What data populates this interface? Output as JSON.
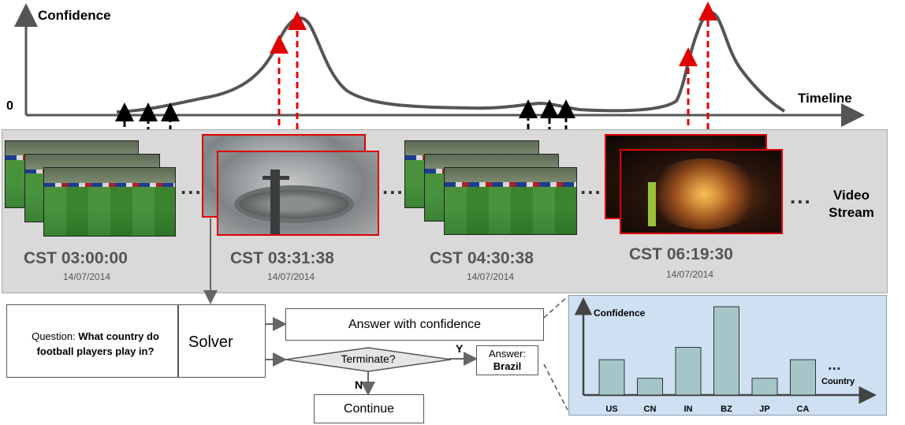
{
  "timeline": {
    "y_axis_label": "Confidence",
    "x_axis_label": "Timeline",
    "zero_label": "0"
  },
  "video_stream": {
    "label_line1": "Video",
    "label_line2": "Stream",
    "ellipsis": "...",
    "groups": [
      {
        "time": "CST 03:00:00",
        "date": "14/07/2014",
        "highlighted": false
      },
      {
        "time": "CST 03:31:38",
        "date": "14/07/2014",
        "highlighted": true
      },
      {
        "time": "CST 04:30:38",
        "date": "14/07/2014",
        "highlighted": false
      },
      {
        "time": "CST 06:19:30",
        "date": "14/07/2014",
        "highlighted": true
      }
    ]
  },
  "question": {
    "prefix": "Question: ",
    "text": "What country do football players play in?"
  },
  "solver": {
    "label": "Solver"
  },
  "answer_with_confidence": {
    "label": "Answer with confidence"
  },
  "terminate": {
    "label": "Terminate?",
    "yes": "Y",
    "no": "N"
  },
  "answer": {
    "prefix": "Answer:",
    "value": "Brazil"
  },
  "continue": {
    "label": "Continue"
  },
  "colors": {
    "curve": "#555555",
    "red_arrow": "#e00000",
    "black_arrow": "#000000",
    "bar_fill": "#a4c6c8",
    "panel_bg": "#cfe0f3"
  },
  "chart_data": {
    "type": "bar",
    "ylabel": "Confidence",
    "xlabel": "Country",
    "categories": [
      "US",
      "CN",
      "IN",
      "BZ",
      "JP",
      "CA"
    ],
    "values": [
      0.4,
      0.19,
      0.54,
      1.0,
      0.19,
      0.4
    ],
    "ellipsis": "...",
    "grid": false
  }
}
